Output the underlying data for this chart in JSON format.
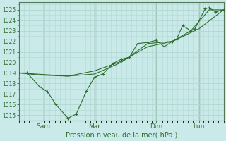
{
  "bg_color": "#caeaea",
  "grid_color": "#b0d8d0",
  "line_color": "#2d6e2d",
  "marker_color": "#2d6e2d",
  "xlabel": "Pression niveau de la mer( hPa )",
  "ylim": [
    1014.5,
    1025.7
  ],
  "yticks": [
    1015,
    1016,
    1017,
    1018,
    1019,
    1020,
    1021,
    1022,
    1023,
    1024,
    1025
  ],
  "xtick_labels": [
    "Sam",
    "Mar",
    "Dim",
    "Lun"
  ],
  "xtick_positions": [
    0.12,
    0.37,
    0.67,
    0.88
  ],
  "xlim": [
    0.0,
    1.0
  ],
  "series": [
    [
      0.0,
      1019.0
    ],
    [
      0.04,
      1019.0
    ],
    [
      0.1,
      1017.7
    ],
    [
      0.14,
      1017.2
    ],
    [
      0.18,
      1016.0
    ],
    [
      0.24,
      1014.7
    ],
    [
      0.28,
      1015.1
    ],
    [
      0.33,
      1017.3
    ],
    [
      0.37,
      1018.6
    ],
    [
      0.41,
      1018.9
    ],
    [
      0.46,
      1019.9
    ],
    [
      0.5,
      1020.3
    ],
    [
      0.54,
      1020.5
    ],
    [
      0.58,
      1021.8
    ],
    [
      0.63,
      1021.9
    ],
    [
      0.67,
      1022.1
    ],
    [
      0.71,
      1021.5
    ],
    [
      0.75,
      1022.0
    ],
    [
      0.77,
      1022.2
    ],
    [
      0.8,
      1023.5
    ],
    [
      0.84,
      1023.0
    ],
    [
      0.86,
      1023.2
    ],
    [
      0.91,
      1025.1
    ],
    [
      0.93,
      1025.2
    ],
    [
      0.96,
      1024.8
    ],
    [
      1.0,
      1025.0
    ]
  ],
  "series2": [
    [
      0.0,
      1019.0
    ],
    [
      0.1,
      1018.8
    ],
    [
      0.24,
      1018.7
    ],
    [
      0.37,
      1019.2
    ],
    [
      0.5,
      1020.1
    ],
    [
      0.63,
      1021.5
    ],
    [
      0.75,
      1022.0
    ],
    [
      0.84,
      1023.0
    ],
    [
      0.93,
      1025.0
    ],
    [
      1.0,
      1025.0
    ]
  ],
  "series3": [
    [
      0.0,
      1019.0
    ],
    [
      0.24,
      1018.7
    ],
    [
      0.37,
      1018.9
    ],
    [
      0.5,
      1020.0
    ],
    [
      0.63,
      1021.8
    ],
    [
      0.75,
      1022.0
    ],
    [
      0.88,
      1023.2
    ],
    [
      1.0,
      1025.0
    ]
  ],
  "vlines": [
    0.12,
    0.37,
    0.67,
    0.88
  ]
}
